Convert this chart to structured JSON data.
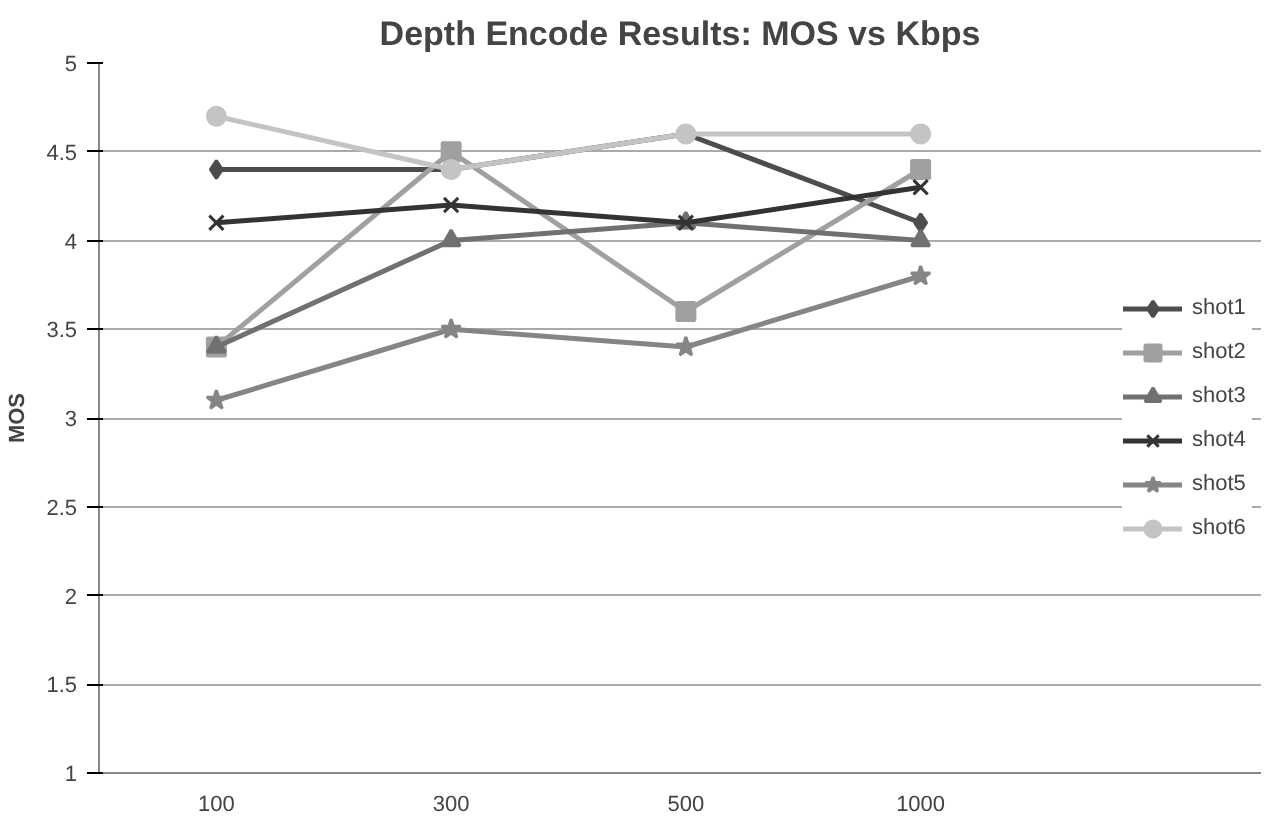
{
  "chart_data": {
    "type": "line",
    "title": "Depth Encode Results: MOS vs Kbps",
    "ylabel": "MOS",
    "categories": [
      "100",
      "300",
      "500",
      "1000"
    ],
    "series": [
      {
        "name": "shot1",
        "color": "#4d4d4d",
        "marker": "diamond",
        "values": [
          4.4,
          4.4,
          4.6,
          4.1
        ]
      },
      {
        "name": "shot2",
        "color": "#a0a0a0",
        "marker": "square",
        "values": [
          3.4,
          4.5,
          3.6,
          4.4
        ]
      },
      {
        "name": "shot3",
        "color": "#707070",
        "marker": "triangle",
        "values": [
          3.4,
          4.0,
          4.1,
          4.0
        ]
      },
      {
        "name": "shot4",
        "color": "#333333",
        "marker": "cross",
        "values": [
          4.1,
          4.2,
          4.1,
          4.3
        ]
      },
      {
        "name": "shot5",
        "color": "#858585",
        "marker": "star",
        "values": [
          3.1,
          3.5,
          3.4,
          3.8
        ]
      },
      {
        "name": "shot6",
        "color": "#c4c4c4",
        "marker": "circle",
        "values": [
          4.7,
          4.4,
          4.6,
          4.6
        ]
      }
    ],
    "ylim": [
      1,
      5
    ],
    "yticks": [
      1,
      1.5,
      2,
      2.5,
      3,
      3.5,
      4,
      4.5,
      5
    ],
    "grid": "y",
    "legend": "right"
  }
}
